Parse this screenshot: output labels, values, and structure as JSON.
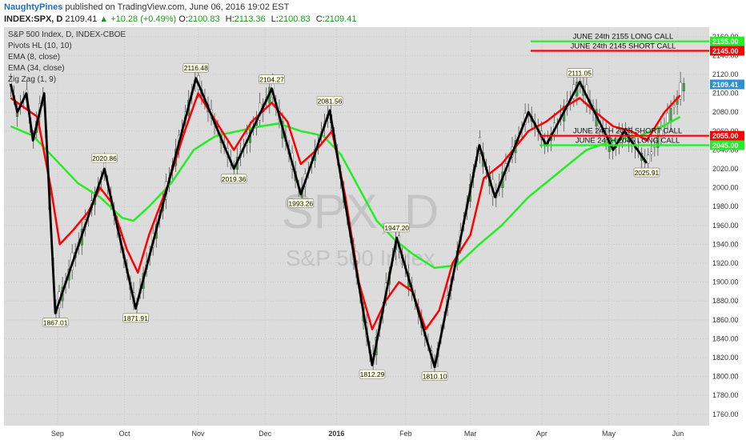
{
  "header": {
    "author": "NaughtyPines",
    "published": " published on TradingView.com, June 06, 2016 19:02 EST",
    "symbol": "INDEX:SPX, D",
    "last": "2109.41",
    "change": "▲ +10.28 (+0.49%)",
    "o_label": "O:",
    "o_value": "2100.83",
    "h_label": "H:",
    "h_value": "2113.36",
    "l_label": "L:",
    "l_value": "2100.83",
    "c_label": "C:",
    "c_value": "2109.41"
  },
  "legend": [
    "S&P 500 Index, D, INDEX-CBOE",
    "Pivots HL (10, 10)",
    "EMA (8, close)",
    "EMA (34, close)",
    "Zig Zag (1, 9)"
  ],
  "watermark": {
    "symbol": "SPX, D",
    "name": "S&P 500 Index"
  },
  "colors": {
    "background": "#dcdcdc",
    "ema_fast": "#ff0000",
    "ema_slow": "#22ee22",
    "zigzag": "#000000",
    "candle": "#38a838",
    "badge_bg": "#2f8fd0"
  },
  "chart_data": {
    "type": "line",
    "x_type": "time",
    "x_ticks": [
      {
        "day": 21,
        "label": "Sep"
      },
      {
        "day": 51,
        "label": "Oct"
      },
      {
        "day": 84,
        "label": "Nov"
      },
      {
        "day": 114,
        "label": "Dec"
      },
      {
        "day": 146,
        "label": "2016"
      },
      {
        "day": 177,
        "label": "Feb"
      },
      {
        "day": 206,
        "label": "Mar"
      },
      {
        "day": 238,
        "label": "Apr"
      },
      {
        "day": 268,
        "label": "May"
      },
      {
        "day": 299,
        "label": "Jun"
      }
    ],
    "y_ticks": [
      1760,
      1780,
      1800,
      1820,
      1840,
      1860,
      1880,
      1900,
      1920,
      1940,
      1960,
      1980,
      2000,
      2020,
      2040,
      2060,
      2080,
      2100,
      2120,
      2140,
      2160
    ],
    "ylim": [
      1748,
      2170
    ],
    "xlim": [
      -3,
      313
    ],
    "last_price": 2109.41,
    "zigzag": [
      [
        0,
        2110
      ],
      [
        3,
        2080
      ],
      [
        7,
        2100
      ],
      [
        10,
        2050
      ],
      [
        15,
        2100
      ],
      [
        20,
        1867
      ],
      [
        42,
        2020
      ],
      [
        56,
        1872
      ],
      [
        83,
        2116
      ],
      [
        100,
        2020
      ],
      [
        117,
        2105
      ],
      [
        130,
        1993
      ],
      [
        143,
        2082
      ],
      [
        162,
        1812
      ],
      [
        173,
        1947
      ],
      [
        190,
        1810
      ],
      [
        210,
        2045
      ],
      [
        217,
        1990
      ],
      [
        232,
        2080
      ],
      [
        240,
        2045
      ],
      [
        255,
        2112
      ],
      [
        270,
        2040
      ],
      [
        275,
        2060
      ],
      [
        285,
        2026
      ]
    ],
    "pivots": [
      {
        "day": 20,
        "price": 1867.01,
        "label": "1867.01",
        "pos": "below"
      },
      {
        "day": 42,
        "price": 2020.86,
        "label": "2020.86",
        "pos": "above"
      },
      {
        "day": 56,
        "price": 1871.91,
        "label": "1871.91",
        "pos": "below"
      },
      {
        "day": 83,
        "price": 2116.48,
        "label": "2116.48",
        "pos": "above"
      },
      {
        "day": 100,
        "price": 2019.36,
        "label": "2019.36",
        "pos": "below"
      },
      {
        "day": 117,
        "price": 2104.27,
        "label": "2104.27",
        "pos": "above"
      },
      {
        "day": 130,
        "price": 1993.26,
        "label": "1993.26",
        "pos": "below"
      },
      {
        "day": 143,
        "price": 2081.56,
        "label": "2081.56",
        "pos": "above"
      },
      {
        "day": 162,
        "price": 1812.29,
        "label": "1812.29",
        "pos": "below"
      },
      {
        "day": 173,
        "price": 1947.2,
        "label": "1947.20",
        "pos": "above"
      },
      {
        "day": 190,
        "price": 1810.1,
        "label": "1810.10",
        "pos": "below"
      },
      {
        "day": 255,
        "price": 2111.05,
        "label": "2111.05",
        "pos": "above"
      },
      {
        "day": 285,
        "price": 2025.91,
        "label": "2025.91",
        "pos": "below"
      }
    ],
    "ema_fast": [
      [
        0,
        2095
      ],
      [
        6,
        2085
      ],
      [
        12,
        2075
      ],
      [
        18,
        2000
      ],
      [
        22,
        1940
      ],
      [
        28,
        1955
      ],
      [
        35,
        1975
      ],
      [
        40,
        2000
      ],
      [
        45,
        1985
      ],
      [
        52,
        1935
      ],
      [
        57,
        1910
      ],
      [
        62,
        1950
      ],
      [
        70,
        2000
      ],
      [
        78,
        2060
      ],
      [
        84,
        2100
      ],
      [
        92,
        2070
      ],
      [
        100,
        2040
      ],
      [
        108,
        2070
      ],
      [
        117,
        2090
      ],
      [
        124,
        2070
      ],
      [
        130,
        2025
      ],
      [
        137,
        2040
      ],
      [
        144,
        2060
      ],
      [
        150,
        1990
      ],
      [
        156,
        1900
      ],
      [
        162,
        1850
      ],
      [
        168,
        1880
      ],
      [
        174,
        1900
      ],
      [
        180,
        1890
      ],
      [
        186,
        1850
      ],
      [
        192,
        1870
      ],
      [
        198,
        1920
      ],
      [
        206,
        1950
      ],
      [
        212,
        2010
      ],
      [
        220,
        2025
      ],
      [
        232,
        2060
      ],
      [
        240,
        2070
      ],
      [
        248,
        2085
      ],
      [
        255,
        2095
      ],
      [
        262,
        2080
      ],
      [
        270,
        2065
      ],
      [
        278,
        2060
      ],
      [
        285,
        2050
      ],
      [
        293,
        2080
      ],
      [
        300,
        2098
      ]
    ],
    "ema_slow": [
      [
        0,
        2065
      ],
      [
        10,
        2055
      ],
      [
        20,
        2030
      ],
      [
        30,
        2005
      ],
      [
        40,
        1990
      ],
      [
        50,
        1968
      ],
      [
        55,
        1965
      ],
      [
        62,
        1980
      ],
      [
        72,
        2005
      ],
      [
        82,
        2040
      ],
      [
        92,
        2055
      ],
      [
        102,
        2060
      ],
      [
        112,
        2065
      ],
      [
        120,
        2068
      ],
      [
        130,
        2060
      ],
      [
        140,
        2055
      ],
      [
        148,
        2035
      ],
      [
        156,
        2000
      ],
      [
        164,
        1965
      ],
      [
        172,
        1945
      ],
      [
        180,
        1930
      ],
      [
        190,
        1915
      ],
      [
        200,
        1918
      ],
      [
        210,
        1940
      ],
      [
        220,
        1960
      ],
      [
        232,
        1990
      ],
      [
        245,
        2015
      ],
      [
        258,
        2040
      ],
      [
        270,
        2050
      ],
      [
        282,
        2055
      ],
      [
        292,
        2065
      ],
      [
        300,
        2075
      ]
    ],
    "levels": [
      {
        "price": 2155,
        "color": "#22ee22",
        "label": "JUNE 24th 2155 LONG CALL",
        "badge": "2155.00",
        "start_day": 233,
        "label_above": true
      },
      {
        "price": 2145,
        "color": "#ff0000",
        "label": "JUNE 24th 2145 SHORT CALL",
        "badge": "2145.00",
        "start_day": 233,
        "label_above": true
      },
      {
        "price": 2055,
        "color": "#ff0000",
        "label": "JUNE 24TH 2055 SHORT CALL",
        "badge": "2055.00",
        "start_day": 237,
        "label_above": true
      },
      {
        "price": 2045,
        "color": "#22ee22",
        "label": "JUNE 24TH 2045 LONG CALL",
        "badge": "2045.00",
        "start_day": 237,
        "label_above": true
      }
    ]
  }
}
